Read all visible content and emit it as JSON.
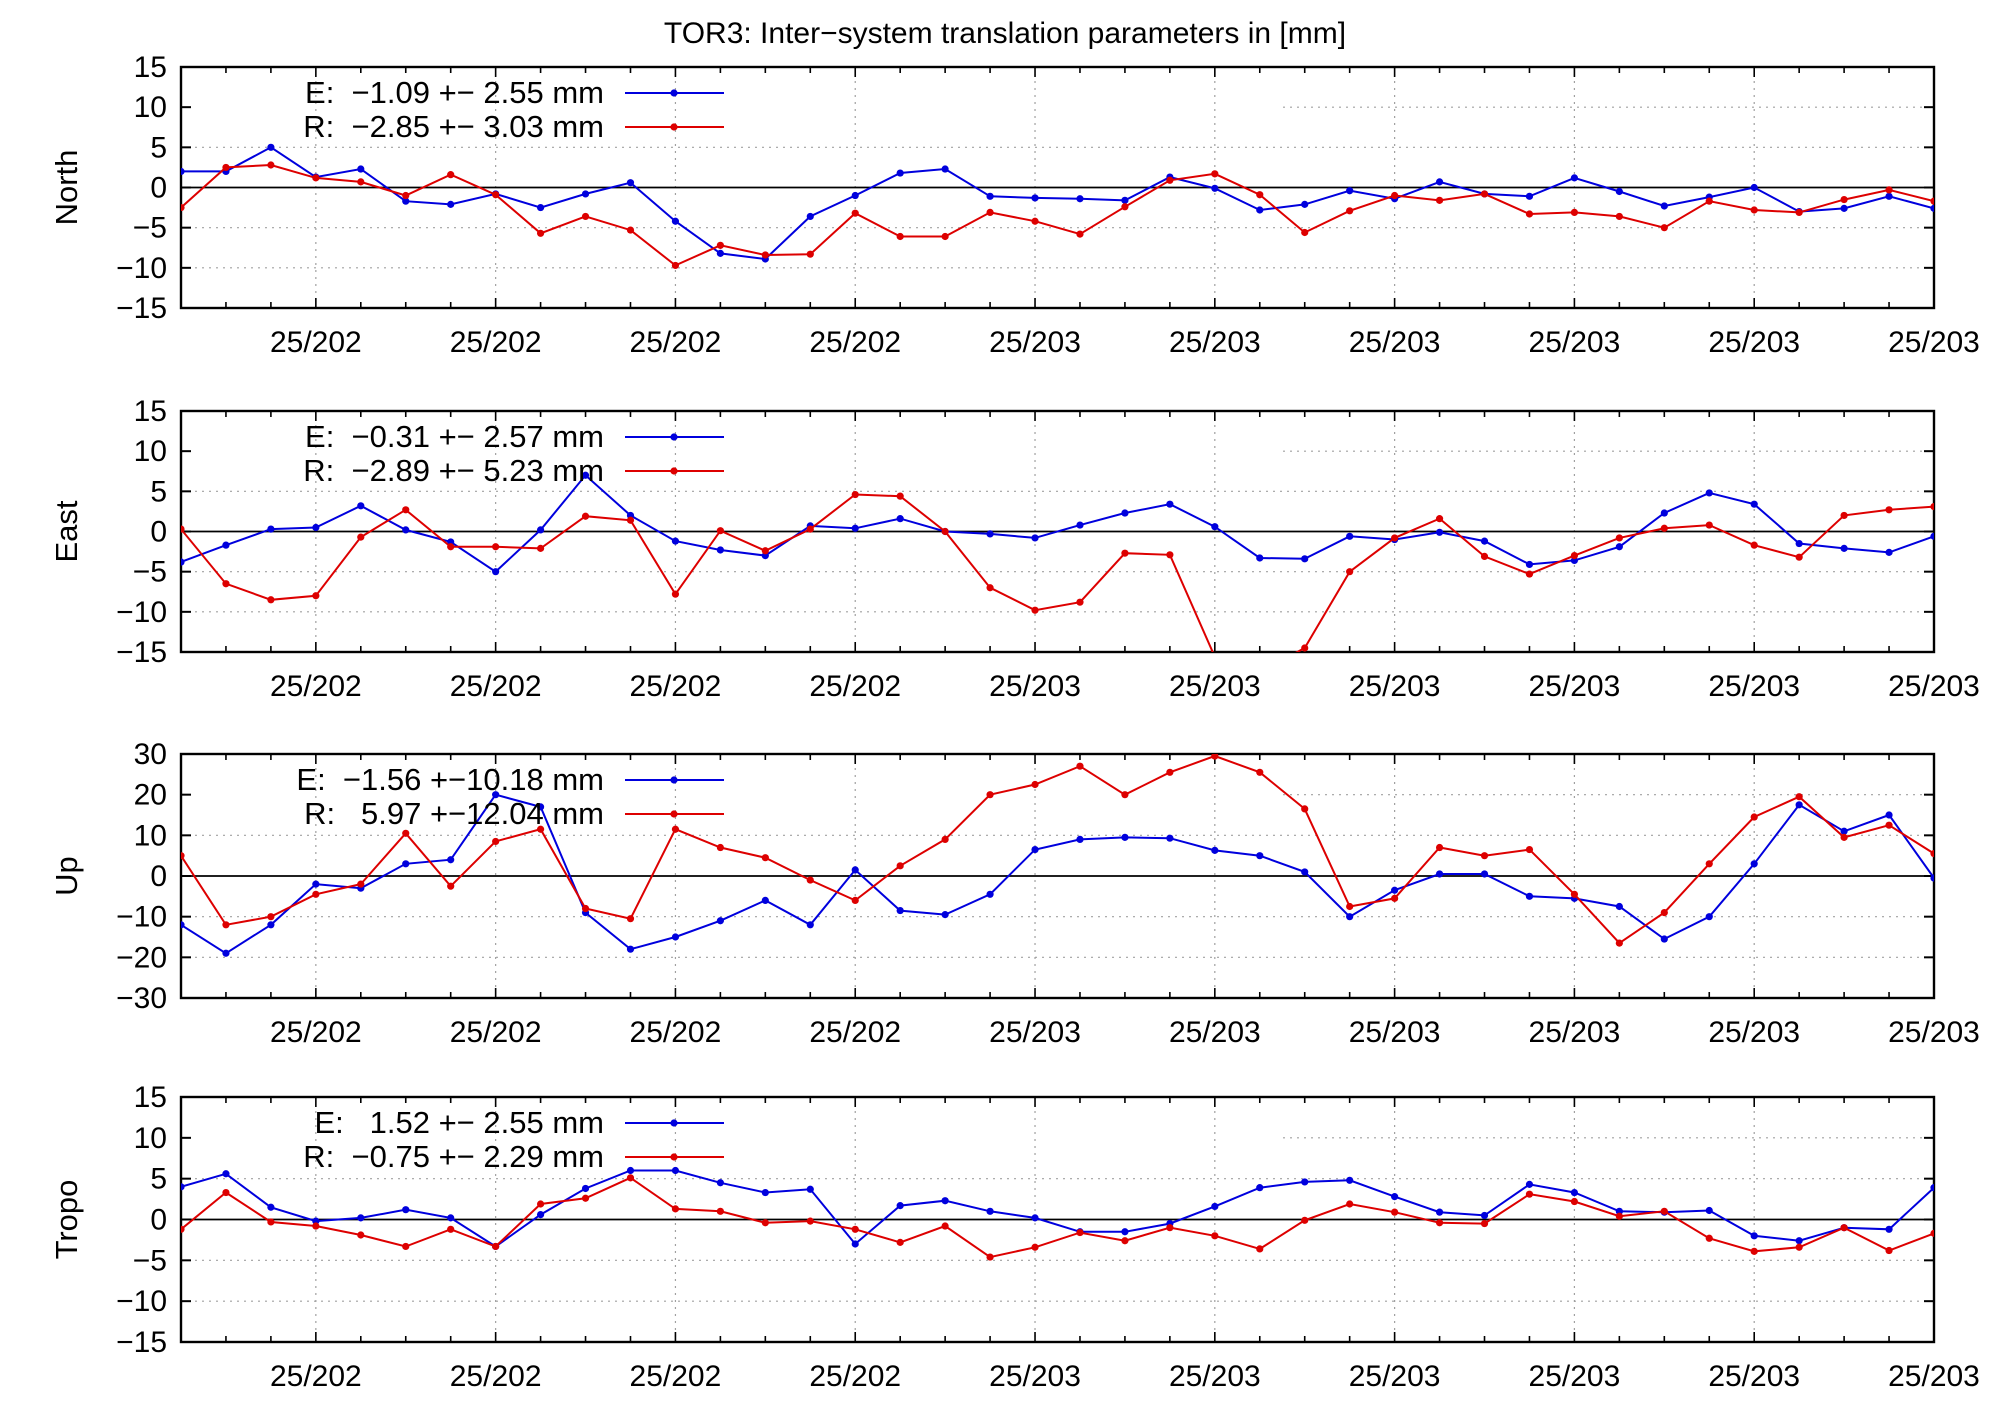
{
  "title": "TOR3: Inter−system translation parameters in [mm]",
  "colors": {
    "E": "#0000dd",
    "R": "#dd0000",
    "axis": "#000000",
    "grid": "#a0a0a0"
  },
  "chart_data": [
    {
      "type": "line",
      "ylabel": "North",
      "ylim": [
        -15,
        15
      ],
      "yticks": [
        15,
        10,
        5,
        0,
        -5,
        -10,
        -15
      ],
      "xlim": [
        0,
        39
      ],
      "xtick_positions": [
        3,
        7,
        11,
        15,
        19,
        23,
        27,
        31,
        35,
        39
      ],
      "xticks": [
        "25/202",
        "25/202",
        "25/202",
        "25/202",
        "25/203",
        "25/203",
        "25/203",
        "25/203",
        "25/203",
        "25/203"
      ],
      "series": [
        {
          "name": "E",
          "legend": "E:  −1.09 +− 2.55 mm",
          "values": [
            2.0,
            2.0,
            5.0,
            1.3,
            2.3,
            -1.7,
            -2.1,
            -0.8,
            -2.5,
            -0.8,
            0.6,
            -4.2,
            -8.2,
            -8.9,
            -3.6,
            -1.0,
            1.8,
            2.3,
            -1.1,
            -1.3,
            -1.4,
            -1.6,
            1.3,
            -0.1,
            -2.8,
            -2.1,
            -0.4,
            -1.4,
            0.7,
            -0.8,
            -1.1,
            1.2,
            -0.5,
            -2.3,
            -1.2,
            0.0,
            -3.0,
            -2.6,
            -1.1,
            -2.6
          ]
        },
        {
          "name": "R",
          "legend": "R:  −2.85 +− 3.03 mm",
          "values": [
            -2.5,
            2.5,
            2.8,
            1.2,
            0.7,
            -1.0,
            1.6,
            -0.9,
            -5.7,
            -3.6,
            -5.3,
            -9.7,
            -7.2,
            -8.4,
            -8.3,
            -3.2,
            -6.1,
            -6.1,
            -3.1,
            -4.2,
            -5.8,
            -2.4,
            0.9,
            1.7,
            -0.9,
            -5.6,
            -2.9,
            -1.0,
            -1.6,
            -0.8,
            -3.3,
            -3.1,
            -3.6,
            -5.0,
            -1.7,
            -2.8,
            -3.1,
            -1.5,
            -0.3,
            -1.7
          ]
        }
      ]
    },
    {
      "type": "line",
      "ylabel": "East",
      "ylim": [
        -15,
        15
      ],
      "yticks": [
        15,
        10,
        5,
        0,
        -5,
        -10,
        -15
      ],
      "xlim": [
        0,
        39
      ],
      "xtick_positions": [
        3,
        7,
        11,
        15,
        19,
        23,
        27,
        31,
        35,
        39
      ],
      "xticks": [
        "25/202",
        "25/202",
        "25/202",
        "25/202",
        "25/203",
        "25/203",
        "25/203",
        "25/203",
        "25/203",
        "25/203"
      ],
      "series": [
        {
          "name": "E",
          "legend": "E:  −0.31 +− 2.57 mm",
          "values": [
            -3.8,
            -1.7,
            0.3,
            0.5,
            3.2,
            0.2,
            -1.3,
            -5.0,
            0.2,
            7.0,
            2.0,
            -1.2,
            -2.3,
            -3.0,
            0.7,
            0.4,
            1.6,
            0.0,
            -0.3,
            -0.8,
            0.8,
            2.3,
            3.4,
            0.6,
            -3.3,
            -3.4,
            -0.6,
            -1.0,
            -0.1,
            -1.2,
            -4.1,
            -3.6,
            -1.9,
            2.3,
            4.8,
            3.4,
            -1.5,
            -2.1,
            -2.6,
            -0.6
          ]
        },
        {
          "name": "R",
          "legend": "R:  −2.89 +− 5.23 mm",
          "values": [
            0.3,
            -6.5,
            -8.5,
            -8.0,
            -0.7,
            2.7,
            -1.9,
            -1.9,
            -2.1,
            1.9,
            1.4,
            -7.8,
            0.1,
            -2.4,
            0.3,
            4.6,
            4.4,
            0.0,
            -7.0,
            -9.8,
            -8.8,
            -2.7,
            -2.9,
            -15.6,
            -17.5,
            -14.5,
            -5.0,
            -0.8,
            1.6,
            -3.1,
            -5.3,
            -3.0,
            -0.8,
            0.4,
            0.8,
            -1.7,
            -3.2,
            2.0,
            2.7,
            3.1
          ]
        }
      ]
    },
    {
      "type": "line",
      "ylabel": "Up",
      "ylim": [
        -30,
        30
      ],
      "yticks": [
        30,
        20,
        10,
        0,
        -10,
        -20,
        -30
      ],
      "xlim": [
        0,
        39
      ],
      "xtick_positions": [
        3,
        7,
        11,
        15,
        19,
        23,
        27,
        31,
        35,
        39
      ],
      "xticks": [
        "25/202",
        "25/202",
        "25/202",
        "25/202",
        "25/203",
        "25/203",
        "25/203",
        "25/203",
        "25/203",
        "25/203"
      ],
      "series": [
        {
          "name": "E",
          "legend": "E:  −1.56 +−10.18 mm",
          "values": [
            -12.0,
            -19.0,
            -12.0,
            -2.0,
            -3.0,
            3.0,
            4.0,
            20.0,
            17.0,
            -9.0,
            -18.0,
            -15.0,
            -11.0,
            -6.0,
            -12.0,
            1.5,
            -8.5,
            -9.5,
            -4.5,
            6.5,
            9.0,
            9.5,
            9.3,
            6.3,
            5.0,
            1.0,
            -10.0,
            -3.5,
            0.5,
            0.5,
            -5.0,
            -5.5,
            -7.5,
            -15.5,
            -10.0,
            3.0,
            17.5,
            11.0,
            15.0,
            -0.5
          ]
        },
        {
          "name": "R",
          "legend": "R:   5.97 +−12.04 mm",
          "values": [
            5.0,
            -12.0,
            -10.0,
            -4.5,
            -2.0,
            10.5,
            -2.5,
            8.5,
            11.5,
            -8.0,
            -10.5,
            11.5,
            7.0,
            4.5,
            -1.0,
            -6.0,
            2.5,
            9.0,
            20.0,
            22.5,
            27.0,
            20.0,
            25.5,
            29.5,
            25.5,
            16.5,
            -7.5,
            -5.5,
            7.0,
            5.0,
            6.5,
            -4.5,
            -16.5,
            -9.0,
            3.0,
            14.5,
            19.5,
            9.5,
            12.5,
            5.5
          ]
        }
      ]
    },
    {
      "type": "line",
      "ylabel": "Tropo",
      "ylim": [
        -15,
        15
      ],
      "yticks": [
        15,
        10,
        5,
        0,
        -5,
        -10,
        -15
      ],
      "xlim": [
        0,
        39
      ],
      "xtick_positions": [
        3,
        7,
        11,
        15,
        19,
        23,
        27,
        31,
        35,
        39
      ],
      "xticks": [
        "25/202",
        "25/202",
        "25/202",
        "25/202",
        "25/203",
        "25/203",
        "25/203",
        "25/203",
        "25/203",
        "25/203"
      ],
      "series": [
        {
          "name": "E",
          "legend": "E:   1.52 +− 2.55 mm",
          "values": [
            4.0,
            5.6,
            1.5,
            -0.2,
            0.2,
            1.2,
            0.2,
            -3.3,
            0.6,
            3.8,
            6.0,
            6.0,
            4.5,
            3.3,
            3.7,
            -3.0,
            1.7,
            2.3,
            1.0,
            0.2,
            -1.5,
            -1.5,
            -0.5,
            1.6,
            3.9,
            4.6,
            4.8,
            2.8,
            0.9,
            0.5,
            4.3,
            3.3,
            1.0,
            0.9,
            1.1,
            -2.0,
            -2.6,
            -1.0,
            -1.2,
            3.9
          ]
        },
        {
          "name": "R",
          "legend": "R:  −0.75 +− 2.29 mm",
          "values": [
            -1.2,
            3.3,
            -0.3,
            -0.8,
            -1.9,
            -3.3,
            -1.2,
            -3.3,
            1.9,
            2.6,
            5.1,
            1.3,
            1.0,
            -0.4,
            -0.2,
            -1.2,
            -2.8,
            -0.8,
            -4.6,
            -3.4,
            -1.6,
            -2.6,
            -1.0,
            -2.0,
            -3.6,
            -0.1,
            1.9,
            0.9,
            -0.4,
            -0.5,
            3.1,
            2.2,
            0.4,
            1.0,
            -2.3,
            -3.9,
            -3.4,
            -1.0,
            -3.8,
            -1.7
          ]
        }
      ]
    }
  ]
}
